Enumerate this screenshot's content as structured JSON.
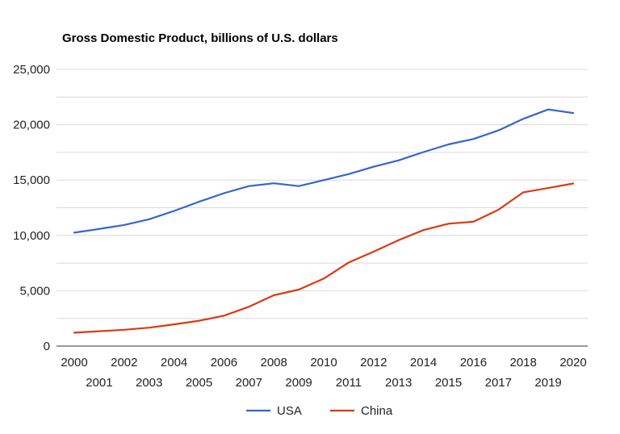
{
  "chart_data": {
    "type": "line",
    "title": "Gross Domestic Product, billions of U.S. dollars",
    "xlabel": "",
    "ylabel": "",
    "x": [
      "2000",
      "2001",
      "2002",
      "2003",
      "2004",
      "2005",
      "2006",
      "2007",
      "2008",
      "2009",
      "2010",
      "2011",
      "2012",
      "2013",
      "2014",
      "2015",
      "2016",
      "2017",
      "2018",
      "2019",
      "2020"
    ],
    "ylim": [
      0,
      25000
    ],
    "yticks": [
      0,
      5000,
      10000,
      15000,
      20000,
      25000
    ],
    "ytick_labels": [
      "0",
      "5,000",
      "10,000",
      "15,000",
      "20,000",
      "25,000"
    ],
    "grid": true,
    "legend_position": "bottom",
    "series": [
      {
        "name": "USA",
        "color": "#3366cc",
        "values": [
          10250,
          10580,
          10940,
          11460,
          12210,
          13040,
          13810,
          14450,
          14710,
          14450,
          14990,
          15540,
          16200,
          16780,
          17530,
          18220,
          18710,
          19480,
          20530,
          21380,
          21060
        ]
      },
      {
        "name": "China",
        "color": "#dc3912",
        "values": [
          1210,
          1340,
          1470,
          1660,
          1960,
          2290,
          2750,
          3550,
          4590,
          5100,
          6090,
          7550,
          8530,
          9570,
          10480,
          11060,
          11230,
          12310,
          13890,
          14280,
          14690
        ]
      }
    ]
  }
}
